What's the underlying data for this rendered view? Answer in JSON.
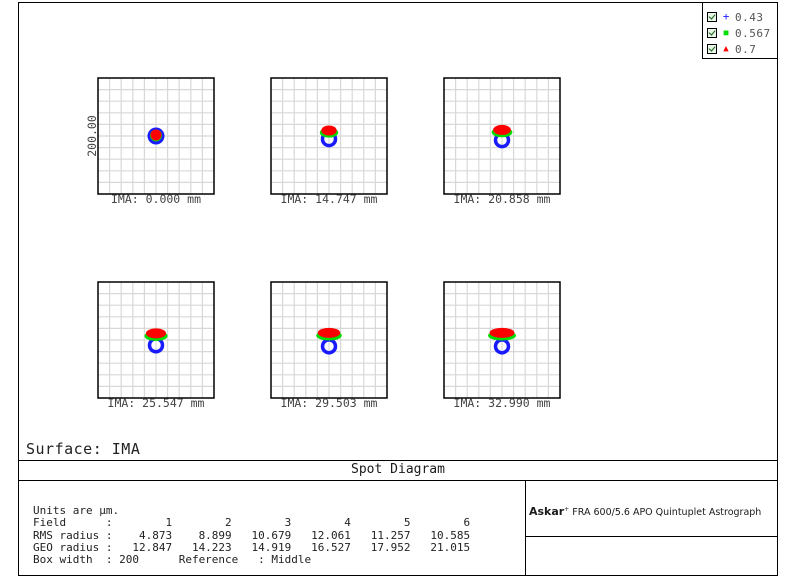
{
  "legend": [
    {
      "symbol": "+",
      "label": "0.43",
      "color": "#1a1aff"
    },
    {
      "symbol": "■",
      "label": "0.567",
      "color": "#00dd00"
    },
    {
      "symbol": "▲",
      "label": "0.7",
      "color": "#ff0000"
    }
  ],
  "plots": {
    "scale_label": "200.00",
    "fields": [
      {
        "label": "IMA: 0.000 mm"
      },
      {
        "label": "IMA: 14.747 mm"
      },
      {
        "label": "IMA: 20.858 mm"
      },
      {
        "label": "IMA: 25.547 mm"
      },
      {
        "label": "IMA: 29.503 mm"
      },
      {
        "label": "IMA: 32.990 mm"
      }
    ]
  },
  "surface_label": "Surface: IMA",
  "title": "Spot Diagram",
  "brand": {
    "name": "Askar",
    "rest": " FRA 600/5.6 APO Quintuplet Astrograph"
  },
  "stats": {
    "units": "Units are µm.",
    "field_row": "Field      :        1        2        3        4        5        6",
    "rms_row": "RMS radius :    4.873    8.899   10.679   12.061   11.257   10.585",
    "geo_row": "GEO radius :   12.847   14.223   14.919   16.527   17.952   21.015",
    "box_row": "Box width  : 200      Reference   : Middle"
  }
}
